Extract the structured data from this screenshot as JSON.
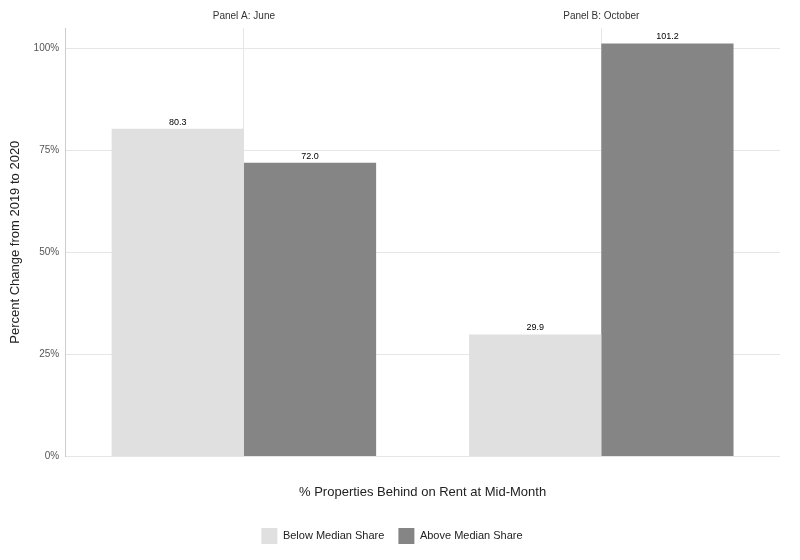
{
  "chart_data": {
    "type": "bar",
    "x_label": "% Properties Behind on Rent at Mid-Month",
    "y_label": "Percent Change from 2019 to 2020",
    "categories": [
      "Panel A: June",
      "Panel B: October"
    ],
    "series": [
      {
        "name": "Below Median Share",
        "color": "#e0e0e0",
        "values": [
          80.3,
          29.9
        ],
        "value_labels": [
          "80.3",
          "29.9"
        ]
      },
      {
        "name": "Above Median Share",
        "color": "#858585",
        "values": [
          72.0,
          101.2
        ],
        "value_labels": [
          "72.0",
          "101.2"
        ]
      }
    ],
    "ylim": [
      0,
      105
    ],
    "yticks": [
      {
        "value": 0,
        "label": "0%"
      },
      {
        "value": 25,
        "label": "25%"
      },
      {
        "value": 50,
        "label": "50%"
      },
      {
        "value": 75,
        "label": "75%"
      },
      {
        "value": 100,
        "label": "100%"
      }
    ],
    "grid": true,
    "legend": "bottom",
    "data_labels": true
  }
}
